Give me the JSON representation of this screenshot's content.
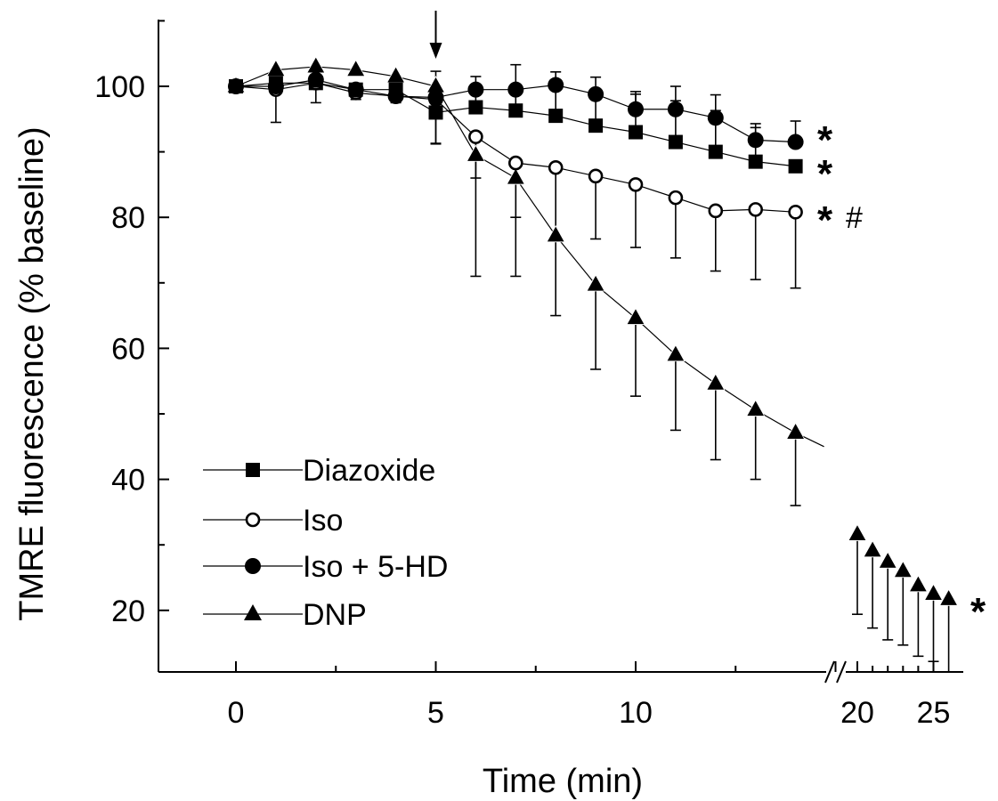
{
  "chart_data": {
    "type": "line",
    "xlabel": "Time (min)",
    "ylabel": "TMRE fluorescence (% baseline)",
    "xlim_segment1": [
      -2,
      18.7
    ],
    "xlim_segment2": [
      19.6,
      25.5
    ],
    "ylim": [
      10,
      110
    ],
    "x_ticks_segment1": [
      "0",
      "5",
      "10"
    ],
    "x_ticks_segment2": [
      "20",
      "25"
    ],
    "y_ticks": [
      "20",
      "40",
      "60",
      "80",
      "100"
    ],
    "axis_break": true,
    "marker": "arrow at x = 5",
    "legend_position": "bottom-left",
    "series": [
      {
        "name": "Diazoxide",
        "marker": "filled-square",
        "x": [
          0,
          1,
          2,
          3,
          4,
          5,
          6,
          7,
          8,
          9,
          10,
          11,
          12,
          13,
          14
        ],
        "y": [
          100,
          100.5,
          100.5,
          99.5,
          99.5,
          96,
          96.8,
          96.3,
          95.5,
          94,
          93,
          91.5,
          90,
          88.5,
          87.8
        ],
        "error_up": [
          null,
          null,
          null,
          null,
          null,
          3,
          3.5,
          4,
          4,
          5.3,
          5.8,
          6.3,
          6.3,
          5.2,
          0
        ]
      },
      {
        "name": "Iso",
        "marker": "open-circle",
        "x": [
          0,
          1,
          2,
          3,
          4,
          5,
          6,
          7,
          8,
          9,
          10,
          11,
          12,
          13,
          14
        ],
        "y": [
          100,
          99.5,
          100.5,
          99,
          98.5,
          98,
          92.3,
          88.3,
          87.6,
          86.3,
          85,
          83,
          81,
          81.2,
          80.8
        ],
        "error_down": [
          null,
          5,
          3,
          1,
          1,
          6.8,
          6.3,
          8.3,
          10.6,
          9.6,
          9.6,
          9.2,
          9.2,
          10.7,
          11.6
        ]
      },
      {
        "name": "Iso + 5-HD",
        "marker": "filled-circle",
        "x": [
          0,
          1,
          2,
          3,
          4,
          5,
          6,
          7,
          8,
          9,
          10,
          11,
          12,
          13,
          14
        ],
        "y": [
          100,
          100,
          101,
          99.5,
          98.5,
          98.3,
          99.5,
          99.5,
          100.2,
          98.8,
          96.5,
          96.5,
          95.2,
          91.8,
          91.5
        ],
        "error_up": [
          null,
          null,
          null,
          null,
          null,
          4,
          2,
          3.8,
          2,
          2.6,
          2.7,
          3.5,
          3.5,
          2.5,
          3.2
        ]
      },
      {
        "name": "DNP",
        "marker": "filled-triangle",
        "x": [
          0,
          1,
          2,
          3,
          4,
          5,
          6,
          7,
          8,
          9,
          10,
          11,
          12,
          13,
          14,
          20,
          21,
          22,
          23,
          24,
          25,
          26
        ],
        "y": [
          100,
          102.5,
          103,
          102.5,
          101.5,
          100,
          89.5,
          86,
          77.2,
          69.7,
          64.6,
          59,
          54.6,
          50.6,
          47.1,
          31.6,
          29.1,
          27.4,
          26,
          23.8,
          22.5,
          21.7
        ],
        "error_down": [
          null,
          null,
          null,
          null,
          null,
          8.7,
          18.5,
          15,
          12.2,
          12.9,
          11.9,
          11.5,
          11.6,
          10.6,
          11.1,
          12.2,
          11.8,
          11.9,
          11.3,
          10.8,
          10.3,
          11.7
        ]
      }
    ],
    "annotations": {
      "diazoxide_sig": "*",
      "iso_sig": "*",
      "iso_hash": "#",
      "iso5hd_sig": "*",
      "dnp_sig": "*"
    }
  }
}
